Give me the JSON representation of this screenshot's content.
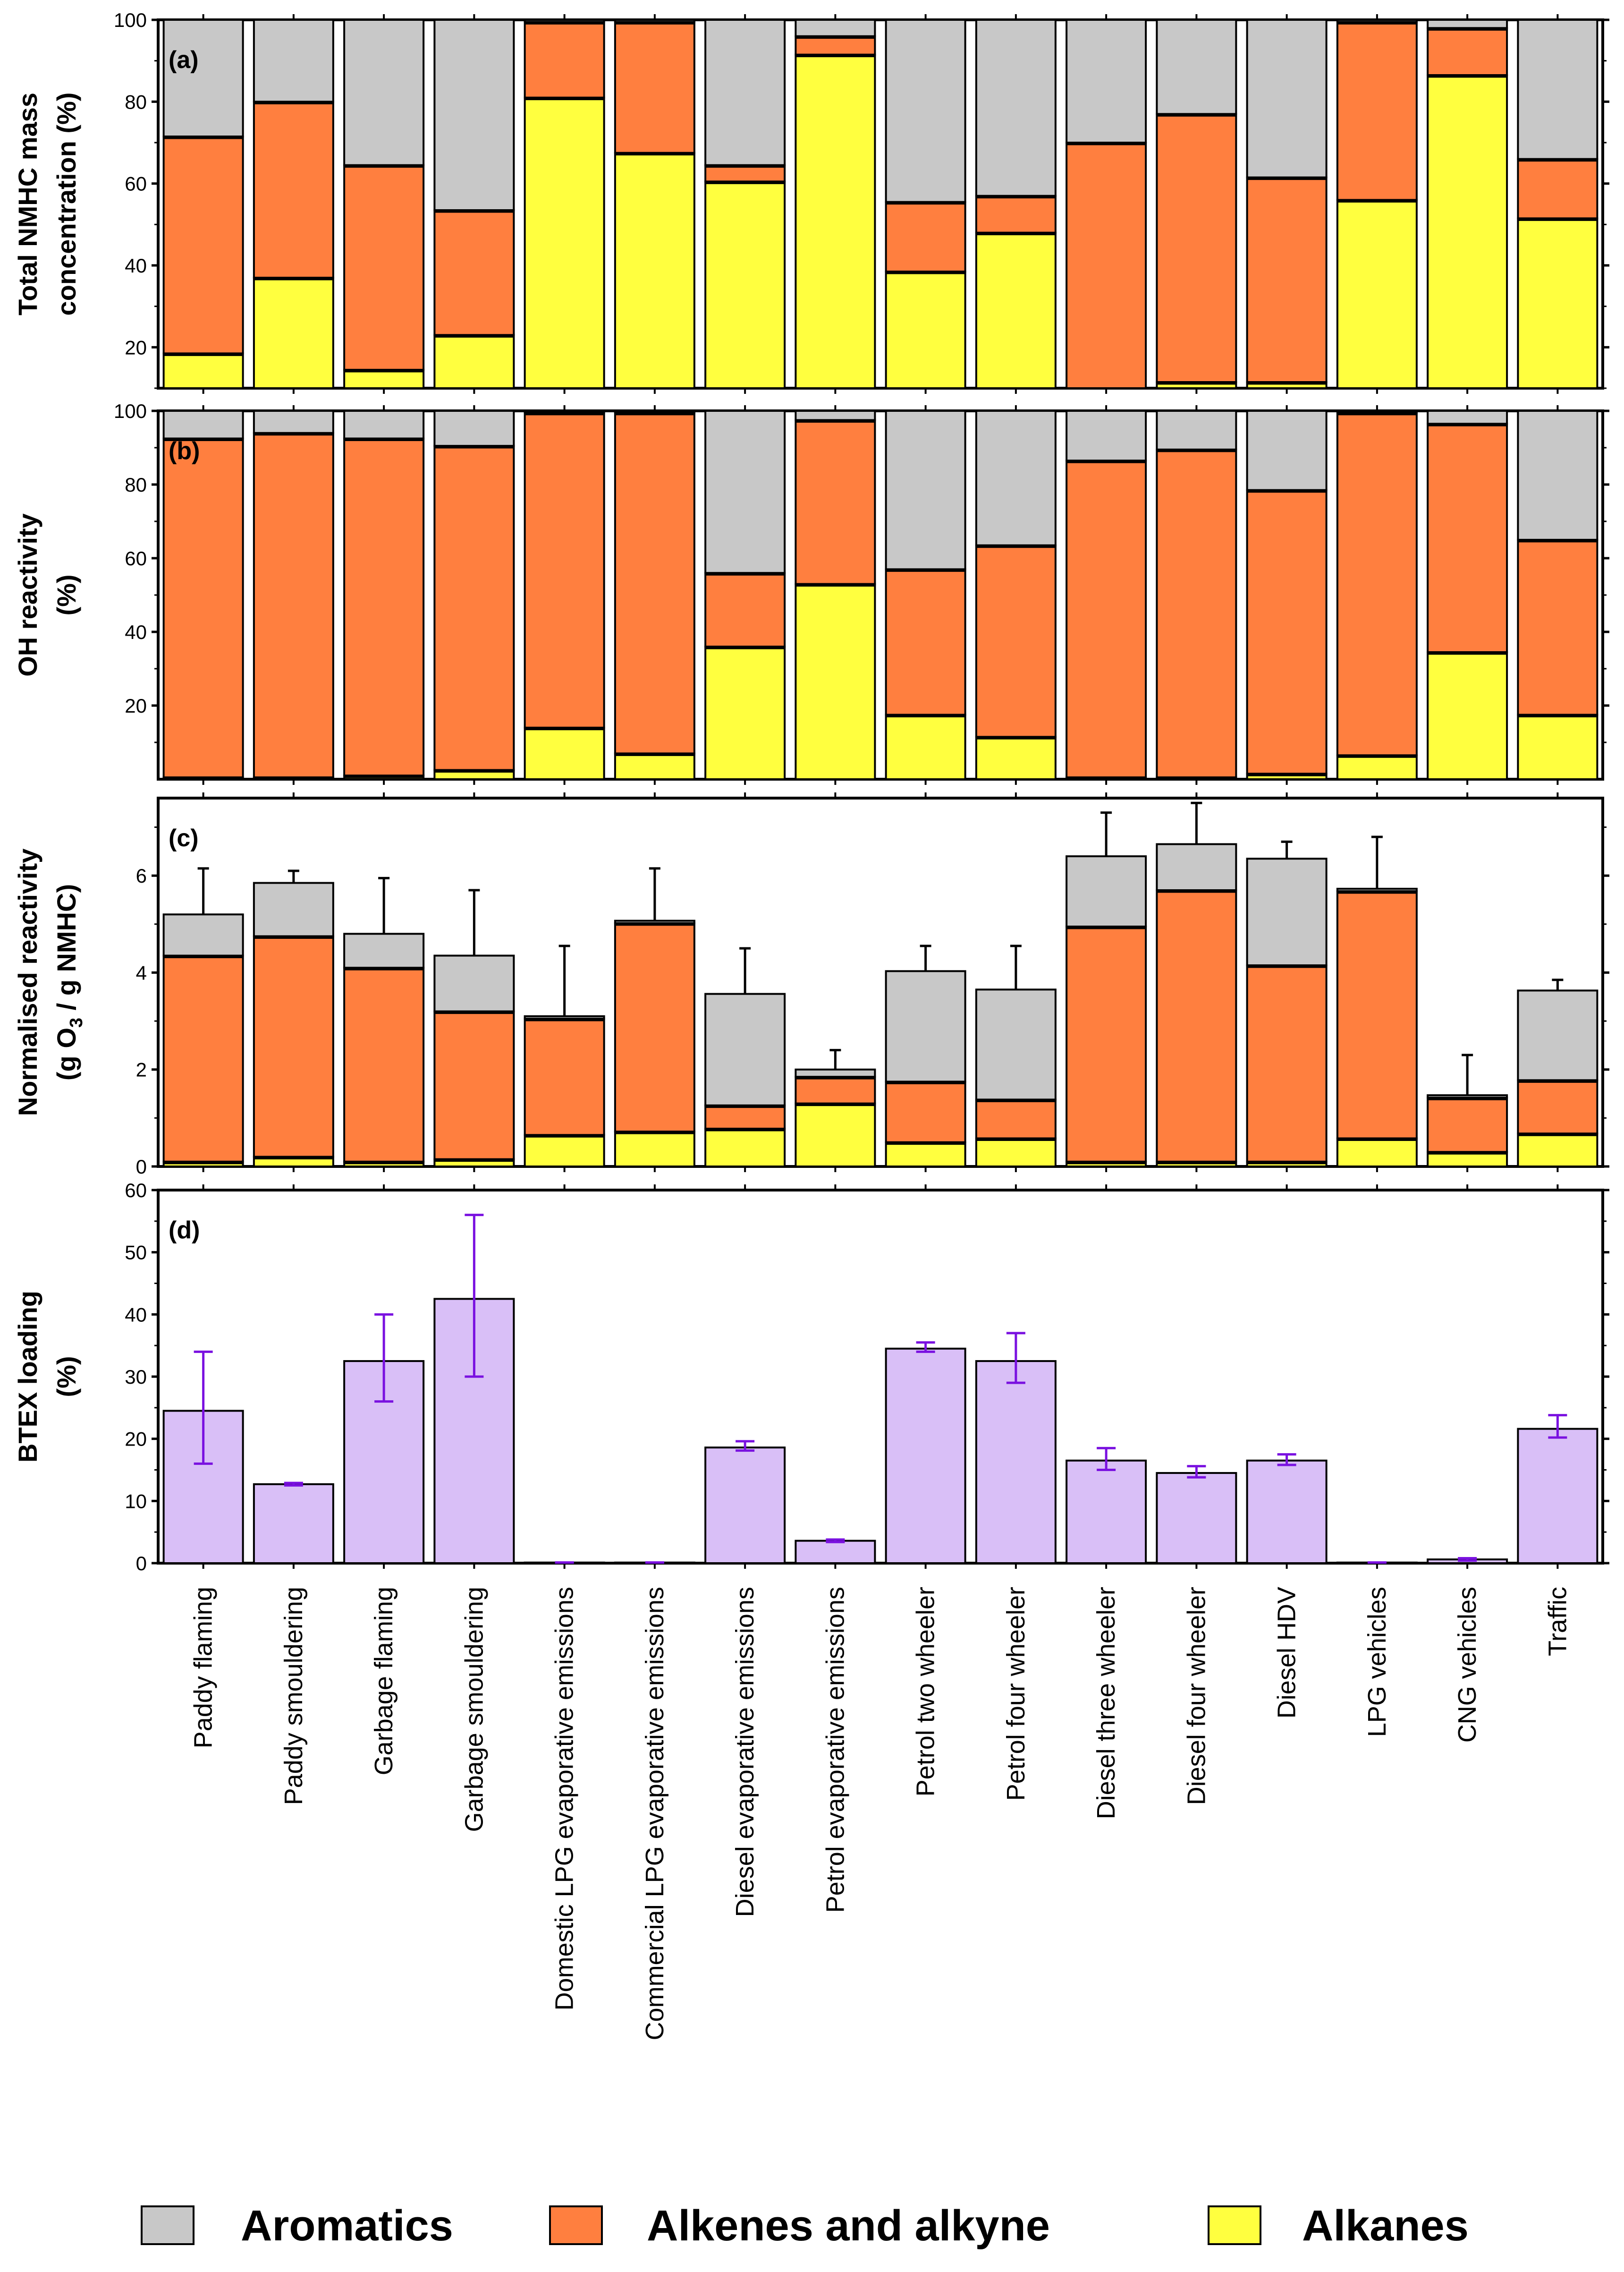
{
  "colors": {
    "aromatics": "#c8c8c8",
    "alkenes": "#ff7f3f",
    "alkanes": "#ffff3f",
    "btex": "#d9bff7",
    "btex_error": "#7a11e0"
  },
  "legend": {
    "aromatics": "Aromatics",
    "alkenes": "Alkenes and alkyne",
    "alkanes": "Alkanes"
  },
  "chart_data": [
    {
      "panel": "(a)",
      "type": "bar",
      "stacked": true,
      "ylabel": [
        "Total NMHC mass",
        "concentration (%)"
      ],
      "ylim": [
        10,
        100
      ],
      "yticks": [
        20,
        40,
        60,
        80,
        100
      ],
      "categories": [
        "Paddy flaming",
        "Paddy smouldering",
        "Garbage flaming",
        "Garbage smouldering",
        "Domestic LPG evaporative emissions",
        "Commercial LPG evaporative emissions",
        "Diesel evaporative emissions",
        "Petrol evaporative emissions",
        "Petrol two  wheeler",
        "Petrol four wheeler",
        "Diesel three wheeler",
        "Diesel four wheeler",
        "Diesel HDV",
        "LPG vehicles",
        "CNG vehicles",
        "Traffic"
      ],
      "series": [
        {
          "name": "Alkanes",
          "values": [
            18.5,
            37,
            14.5,
            23,
            81,
            67.5,
            60.5,
            91.5,
            38.5,
            48,
            10,
            11.5,
            11.5,
            56,
            86.5,
            51.5
          ]
        },
        {
          "name": "Alkenes and alkyne",
          "values": [
            53,
            43,
            50,
            30.5,
            18.5,
            32,
            4,
            4.5,
            17,
            9,
            60,
            65.5,
            50,
            43.5,
            11.5,
            14.5
          ]
        },
        {
          "name": "Aromatics",
          "values": [
            28.5,
            20,
            35.5,
            46.5,
            0.5,
            0.5,
            35.5,
            4,
            44.5,
            43,
            30,
            23,
            38.5,
            0.5,
            2,
            34
          ]
        }
      ]
    },
    {
      "panel": "(b)",
      "type": "bar",
      "stacked": true,
      "ylabel": [
        "OH reactivity",
        "(%)"
      ],
      "ylim": [
        0,
        100
      ],
      "yticks": [
        20,
        40,
        60,
        80,
        100
      ],
      "series": [
        {
          "name": "Alkanes",
          "values": [
            0.5,
            0.5,
            1,
            2.5,
            14,
            7,
            36,
            53,
            17.5,
            11.5,
            0.5,
            0.5,
            1.5,
            6.5,
            34.5,
            17.5
          ]
        },
        {
          "name": "Alkenes and alkyne",
          "values": [
            92,
            93.5,
            91.5,
            88,
            85.5,
            92.5,
            20,
            44.5,
            39.5,
            52,
            86,
            89,
            77,
            93,
            62,
            47.5
          ]
        },
        {
          "name": "Aromatics",
          "values": [
            7.5,
            6,
            7.5,
            9.5,
            0.5,
            0.5,
            44,
            2.5,
            43,
            36.5,
            13.5,
            10.5,
            21.5,
            0.5,
            3.5,
            35
          ]
        }
      ]
    },
    {
      "panel": "(c)",
      "type": "bar",
      "stacked": true,
      "ylabel": [
        "Normalised reactivity",
        "(g O",
        "3",
        " / g NMHC)"
      ],
      "ylim": [
        0,
        7.6
      ],
      "yticks": [
        0,
        2,
        4,
        6
      ],
      "series": [
        {
          "name": "Alkanes",
          "values": [
            0.1,
            0.2,
            0.1,
            0.15,
            0.65,
            0.72,
            0.78,
            1.3,
            0.5,
            0.58,
            0.1,
            0.1,
            0.1,
            0.58,
            0.3,
            0.68
          ]
        },
        {
          "name": "Alkenes and alkyne",
          "values": [
            4.25,
            4.55,
            4.0,
            3.05,
            2.4,
            4.3,
            0.48,
            0.55,
            1.25,
            0.8,
            4.85,
            5.6,
            4.05,
            5.1,
            1.12,
            1.1
          ]
        },
        {
          "name": "Aromatics",
          "values": [
            0.85,
            1.1,
            0.7,
            1.15,
            0.05,
            0.05,
            2.3,
            0.15,
            2.28,
            2.27,
            1.45,
            0.95,
            2.2,
            0.05,
            0.05,
            1.85
          ]
        }
      ],
      "error_top": [
        6.15,
        6.1,
        5.95,
        5.7,
        4.55,
        6.15,
        4.5,
        2.4,
        4.55,
        4.55,
        7.3,
        7.5,
        6.7,
        6.8,
        2.3,
        3.85
      ]
    },
    {
      "panel": "(d)",
      "type": "bar",
      "ylabel": [
        "BTEX loading",
        "(%)"
      ],
      "ylim": [
        0,
        60
      ],
      "yticks": [
        0,
        10,
        20,
        30,
        40,
        50,
        60
      ],
      "values": [
        24.5,
        12.7,
        32.5,
        42.5,
        0.1,
        0.1,
        18.6,
        3.6,
        34.5,
        32.5,
        16.5,
        14.5,
        16.5,
        0.1,
        0.6,
        21.6
      ],
      "error_low": [
        16,
        12.5,
        26,
        30,
        0.1,
        0.1,
        18.1,
        3.4,
        34,
        29,
        15,
        13.8,
        15.8,
        0.1,
        0.4,
        20.2
      ],
      "error_high": [
        34,
        12.9,
        40,
        56,
        0.1,
        0.1,
        19.6,
        3.8,
        35.5,
        37,
        18.5,
        15.6,
        17.5,
        0.1,
        0.8,
        23.8
      ]
    }
  ]
}
